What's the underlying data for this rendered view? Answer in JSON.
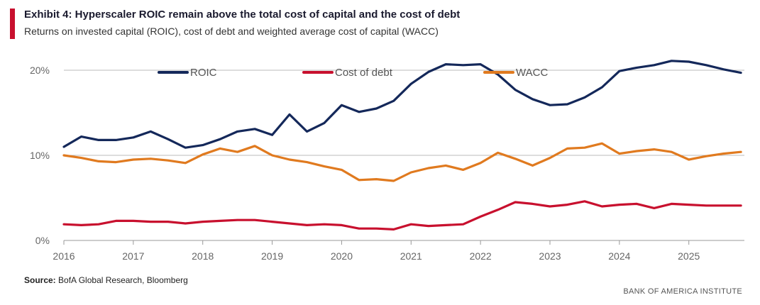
{
  "header": {
    "title": "Exhibit 4: Hyperscaler ROIC remain above the total cost of capital and the cost of debt",
    "subtitle": "Returns on invested capital (ROIC), cost of debt and weighted average cost of capital (WACC)"
  },
  "footer": {
    "source_label": "Source:",
    "source_text": "BofA Global Research, Bloomberg",
    "brand": "BANK OF AMERICA INSTITUTE"
  },
  "colors": {
    "accent": "#c8102e",
    "roic": "#14285a",
    "cost_of_debt": "#c8102e",
    "wacc": "#e07a1f",
    "grid": "#bbbbbb"
  },
  "chart_data": {
    "type": "line",
    "ylim": [
      0,
      0.22
    ],
    "xlim": [
      2016.0,
      2025.8
    ],
    "yticks": [
      {
        "value": 0,
        "label": "0%"
      },
      {
        "value": 0.1,
        "label": "10%"
      },
      {
        "value": 0.2,
        "label": "20%"
      }
    ],
    "xticks": [
      {
        "value": 2016,
        "label": "2016"
      },
      {
        "value": 2017,
        "label": "2017"
      },
      {
        "value": 2018,
        "label": "2018"
      },
      {
        "value": 2019,
        "label": "2019"
      },
      {
        "value": 2020,
        "label": "2020"
      },
      {
        "value": 2021,
        "label": "2021"
      },
      {
        "value": 2022,
        "label": "2022"
      },
      {
        "value": 2023,
        "label": "2023"
      },
      {
        "value": 2024,
        "label": "2024"
      },
      {
        "value": 2025,
        "label": "2025"
      }
    ],
    "grid": true,
    "legend_position": "top",
    "x": [
      2016.0,
      2016.25,
      2016.5,
      2016.75,
      2017.0,
      2017.25,
      2017.5,
      2017.75,
      2018.0,
      2018.25,
      2018.5,
      2018.75,
      2019.0,
      2019.25,
      2019.5,
      2019.75,
      2020.0,
      2020.25,
      2020.5,
      2020.75,
      2021.0,
      2021.25,
      2021.5,
      2021.75,
      2022.0,
      2022.25,
      2022.5,
      2022.75,
      2023.0,
      2023.25,
      2023.5,
      2023.75,
      2024.0,
      2024.25,
      2024.5,
      2024.75,
      2025.0,
      2025.25,
      2025.5,
      2025.75
    ],
    "series": [
      {
        "name": "ROIC",
        "color_key": "roic",
        "values": [
          0.11,
          0.122,
          0.118,
          0.118,
          0.121,
          0.128,
          0.119,
          0.109,
          0.112,
          0.119,
          0.128,
          0.131,
          0.124,
          0.148,
          0.128,
          0.138,
          0.159,
          0.151,
          0.155,
          0.164,
          0.184,
          0.198,
          0.207,
          0.206,
          0.207,
          0.195,
          0.177,
          0.166,
          0.159,
          0.16,
          0.168,
          0.18,
          0.199,
          0.203,
          0.206,
          0.211,
          0.21,
          0.206,
          0.201,
          0.197
        ]
      },
      {
        "name": "Cost of debt",
        "color_key": "cost_of_debt",
        "values": [
          0.019,
          0.018,
          0.019,
          0.023,
          0.023,
          0.022,
          0.022,
          0.02,
          0.022,
          0.023,
          0.024,
          0.024,
          0.022,
          0.02,
          0.018,
          0.019,
          0.018,
          0.014,
          0.014,
          0.013,
          0.019,
          0.017,
          0.018,
          0.019,
          0.028,
          0.036,
          0.045,
          0.043,
          0.04,
          0.042,
          0.046,
          0.04,
          0.042,
          0.043,
          0.038,
          0.043,
          0.042,
          0.041,
          0.041,
          0.041
        ]
      },
      {
        "name": "WACC",
        "color_key": "wacc",
        "values": [
          0.1,
          0.097,
          0.093,
          0.092,
          0.095,
          0.096,
          0.094,
          0.091,
          0.101,
          0.108,
          0.104,
          0.111,
          0.1,
          0.095,
          0.092,
          0.087,
          0.083,
          0.071,
          0.072,
          0.07,
          0.08,
          0.085,
          0.088,
          0.083,
          0.091,
          0.103,
          0.096,
          0.088,
          0.097,
          0.108,
          0.109,
          0.114,
          0.102,
          0.105,
          0.107,
          0.104,
          0.095,
          0.099,
          0.102,
          0.104
        ]
      }
    ]
  }
}
